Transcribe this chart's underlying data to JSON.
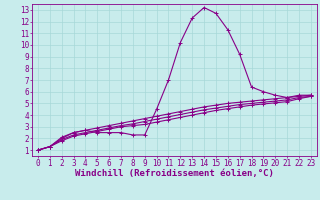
{
  "xlabel": "Windchill (Refroidissement éolien,°C)",
  "background_color": "#c8ecec",
  "line_color": "#880088",
  "grid_color": "#a8d8d8",
  "xlim": [
    -0.5,
    23.5
  ],
  "ylim": [
    0.5,
    13.5
  ],
  "yticks": [
    1,
    2,
    3,
    4,
    5,
    6,
    7,
    8,
    9,
    10,
    11,
    12,
    13
  ],
  "xticks": [
    0,
    1,
    2,
    3,
    4,
    5,
    6,
    7,
    8,
    9,
    10,
    11,
    12,
    13,
    14,
    15,
    16,
    17,
    18,
    19,
    20,
    21,
    22,
    23
  ],
  "series": [
    [
      0,
      1.0
    ],
    [
      1,
      1.3
    ],
    [
      2,
      2.1
    ],
    [
      3,
      2.5
    ],
    [
      4,
      2.7
    ],
    [
      5,
      2.5
    ],
    [
      6,
      2.5
    ],
    [
      7,
      2.5
    ],
    [
      8,
      2.3
    ],
    [
      9,
      2.3
    ],
    [
      10,
      4.5
    ],
    [
      11,
      7.0
    ],
    [
      12,
      10.2
    ],
    [
      13,
      12.3
    ],
    [
      14,
      13.2
    ],
    [
      15,
      12.7
    ],
    [
      16,
      11.3
    ],
    [
      17,
      9.2
    ],
    [
      18,
      6.4
    ],
    [
      19,
      6.0
    ],
    [
      20,
      5.7
    ],
    [
      21,
      5.5
    ],
    [
      22,
      5.7
    ],
    [
      23,
      5.7
    ]
  ],
  "series2": [
    [
      0,
      1.0
    ],
    [
      1,
      1.3
    ],
    [
      2,
      2.0
    ],
    [
      3,
      2.5
    ],
    [
      4,
      2.7
    ],
    [
      5,
      2.9
    ],
    [
      6,
      3.1
    ],
    [
      7,
      3.3
    ],
    [
      8,
      3.5
    ],
    [
      9,
      3.7
    ],
    [
      10,
      3.9
    ],
    [
      11,
      4.1
    ],
    [
      12,
      4.3
    ],
    [
      13,
      4.5
    ],
    [
      14,
      4.7
    ],
    [
      15,
      4.85
    ],
    [
      16,
      5.0
    ],
    [
      17,
      5.1
    ],
    [
      18,
      5.2
    ],
    [
      19,
      5.3
    ],
    [
      20,
      5.4
    ],
    [
      21,
      5.5
    ],
    [
      22,
      5.6
    ],
    [
      23,
      5.7
    ]
  ],
  "series3": [
    [
      0,
      1.0
    ],
    [
      1,
      1.3
    ],
    [
      2,
      1.9
    ],
    [
      3,
      2.3
    ],
    [
      4,
      2.5
    ],
    [
      5,
      2.7
    ],
    [
      6,
      2.9
    ],
    [
      7,
      3.1
    ],
    [
      8,
      3.25
    ],
    [
      9,
      3.45
    ],
    [
      10,
      3.65
    ],
    [
      11,
      3.85
    ],
    [
      12,
      4.05
    ],
    [
      13,
      4.25
    ],
    [
      14,
      4.45
    ],
    [
      15,
      4.6
    ],
    [
      16,
      4.75
    ],
    [
      17,
      4.9
    ],
    [
      18,
      5.0
    ],
    [
      19,
      5.1
    ],
    [
      20,
      5.2
    ],
    [
      21,
      5.3
    ],
    [
      22,
      5.5
    ],
    [
      23,
      5.6
    ]
  ],
  "series4": [
    [
      0,
      1.0
    ],
    [
      1,
      1.3
    ],
    [
      2,
      1.8
    ],
    [
      3,
      2.2
    ],
    [
      4,
      2.4
    ],
    [
      5,
      2.6
    ],
    [
      6,
      2.8
    ],
    [
      7,
      3.0
    ],
    [
      8,
      3.1
    ],
    [
      9,
      3.2
    ],
    [
      10,
      3.4
    ],
    [
      11,
      3.6
    ],
    [
      12,
      3.8
    ],
    [
      13,
      4.0
    ],
    [
      14,
      4.2
    ],
    [
      15,
      4.4
    ],
    [
      16,
      4.55
    ],
    [
      17,
      4.7
    ],
    [
      18,
      4.85
    ],
    [
      19,
      4.95
    ],
    [
      20,
      5.05
    ],
    [
      21,
      5.15
    ],
    [
      22,
      5.4
    ],
    [
      23,
      5.6
    ]
  ],
  "marker": "+",
  "markersize": 3,
  "linewidth": 0.8,
  "tick_fontsize": 5.5,
  "label_fontsize": 6.5
}
